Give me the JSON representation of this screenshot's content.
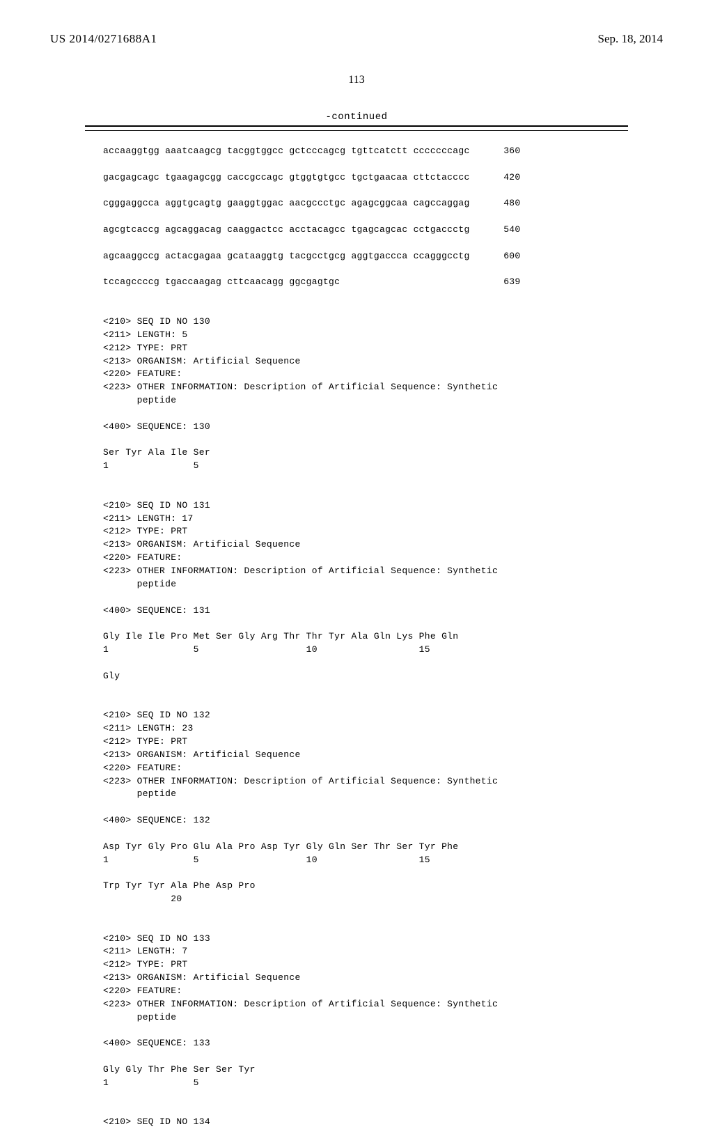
{
  "header": {
    "pub_number": "US 2014/0271688A1",
    "pub_date": "Sep. 18, 2014"
  },
  "page_number": "113",
  "continued_label": "-continued",
  "sequence_text": "accaaggtgg aaatcaagcg tacggtggcc gctcccagcg tgttcatctt cccccccagc      360\n\ngacgagcagc tgaagagcgg caccgccagc gtggtgtgcc tgctgaacaa cttctacccc      420\n\ncgggaggcca aggtgcagtg gaaggtggac aacgccctgc agagcggcaa cagccaggag      480\n\nagcgtcaccg agcaggacag caaggactcc acctacagcc tgagcagcac cctgaccctg      540\n\nagcaaggccg actacgagaa gcataaggtg tacgcctgcg aggtgaccca ccagggcctg      600\n\ntccagccccg tgaccaagag cttcaacagg ggcgagtgc                             639\n\n\n<210> SEQ ID NO 130\n<211> LENGTH: 5\n<212> TYPE: PRT\n<213> ORGANISM: Artificial Sequence\n<220> FEATURE:\n<223> OTHER INFORMATION: Description of Artificial Sequence: Synthetic\n      peptide\n\n<400> SEQUENCE: 130\n\nSer Tyr Ala Ile Ser\n1               5\n\n\n<210> SEQ ID NO 131\n<211> LENGTH: 17\n<212> TYPE: PRT\n<213> ORGANISM: Artificial Sequence\n<220> FEATURE:\n<223> OTHER INFORMATION: Description of Artificial Sequence: Synthetic\n      peptide\n\n<400> SEQUENCE: 131\n\nGly Ile Ile Pro Met Ser Gly Arg Thr Thr Tyr Ala Gln Lys Phe Gln\n1               5                   10                  15\n\nGly\n\n\n<210> SEQ ID NO 132\n<211> LENGTH: 23\n<212> TYPE: PRT\n<213> ORGANISM: Artificial Sequence\n<220> FEATURE:\n<223> OTHER INFORMATION: Description of Artificial Sequence: Synthetic\n      peptide\n\n<400> SEQUENCE: 132\n\nAsp Tyr Gly Pro Glu Ala Pro Asp Tyr Gly Gln Ser Thr Ser Tyr Phe\n1               5                   10                  15\n\nTrp Tyr Tyr Ala Phe Asp Pro\n            20\n\n\n<210> SEQ ID NO 133\n<211> LENGTH: 7\n<212> TYPE: PRT\n<213> ORGANISM: Artificial Sequence\n<220> FEATURE:\n<223> OTHER INFORMATION: Description of Artificial Sequence: Synthetic\n      peptide\n\n<400> SEQUENCE: 133\n\nGly Gly Thr Phe Ser Ser Tyr\n1               5\n\n\n<210> SEQ ID NO 134"
}
